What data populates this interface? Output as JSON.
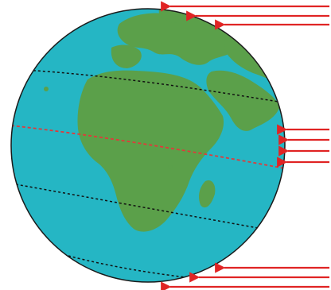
{
  "diagram": {
    "subject": "earth-globe-with-sun-rays",
    "colors": {
      "background": "#ffffff",
      "ocean": "#25b6c4",
      "land": "#5ba04a",
      "globe_outline": "#1a1a1a",
      "latitude_line": "#111111",
      "equator_line": "#e03a3a",
      "sun_ray": "#e02424"
    },
    "parallels": [
      {
        "id": "arctic-circle",
        "style": "dashed"
      },
      {
        "id": "tropic-of-cancer",
        "style": "dashed"
      },
      {
        "id": "equator",
        "style": "dashed-red"
      },
      {
        "id": "tropic-of-capricorn",
        "style": "dashed"
      },
      {
        "id": "antarctic-circle",
        "style": "dashed"
      }
    ],
    "ray_groups": [
      {
        "id": "north-rays",
        "count": 3
      },
      {
        "id": "equator-rays",
        "count": 4
      },
      {
        "id": "south-rays",
        "count": 3
      }
    ]
  }
}
